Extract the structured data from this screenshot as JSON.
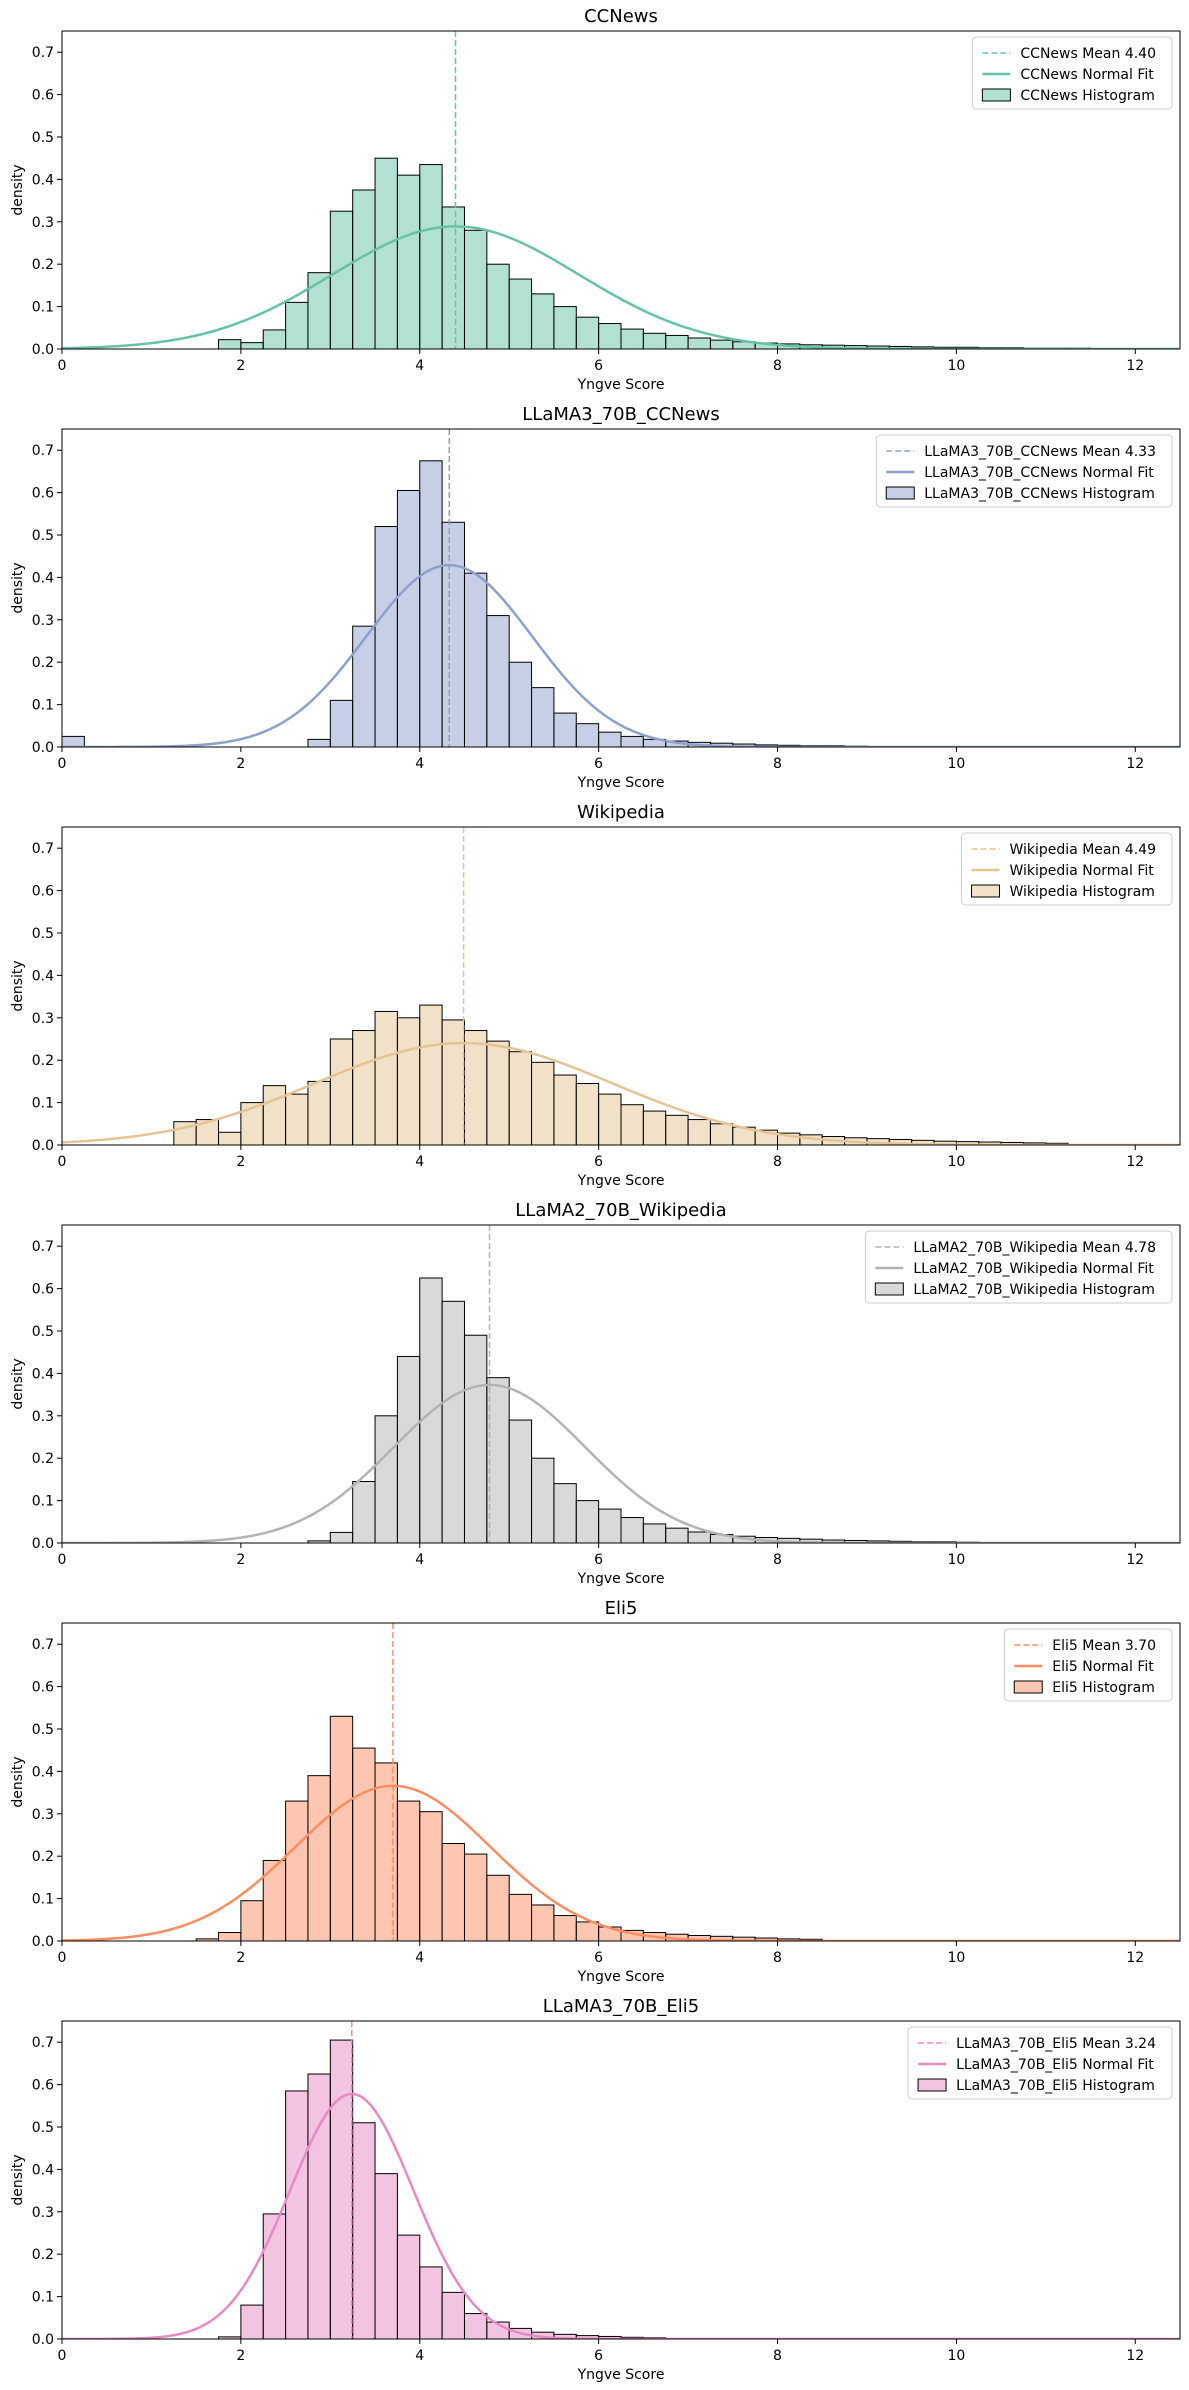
{
  "chart_data": [
    {
      "type": "histogram",
      "title": "CCNews",
      "xlabel": "Yngve Score",
      "ylabel": "density",
      "xlim": [
        0,
        12.5
      ],
      "ylim": [
        0,
        0.75
      ],
      "xticks": [
        "0",
        "2",
        "4",
        "6",
        "8",
        "10",
        "12"
      ],
      "yticks": [
        "0.0",
        "0.1",
        "0.2",
        "0.3",
        "0.4",
        "0.5",
        "0.6",
        "0.7"
      ],
      "color": "#66c2a5",
      "bin_start": 1.75,
      "bin_width": 0.25,
      "densities": [
        0.022,
        0.015,
        0.045,
        0.11,
        0.18,
        0.325,
        0.375,
        0.45,
        0.41,
        0.435,
        0.335,
        0.28,
        0.2,
        0.165,
        0.13,
        0.1,
        0.075,
        0.06,
        0.047,
        0.037,
        0.032,
        0.026,
        0.021,
        0.017,
        0.014,
        0.012,
        0.01,
        0.009,
        0.008,
        0.007,
        0.006,
        0.005,
        0.004,
        0.004,
        0.003,
        0.003,
        0.002,
        0.002,
        0.002,
        0.001,
        0.001
      ],
      "mean": 4.4,
      "std": 1.38,
      "legend": [
        "CCNews Mean 4.40",
        "CCNews Normal Fit",
        "CCNews Histogram"
      ],
      "legend_position": "upper right"
    },
    {
      "type": "histogram",
      "title": "LLaMA3_70B_CCNews",
      "xlabel": "Yngve Score",
      "ylabel": "density",
      "xlim": [
        0,
        12.5
      ],
      "ylim": [
        0,
        0.75
      ],
      "xticks": [
        "0",
        "2",
        "4",
        "6",
        "8",
        "10",
        "12"
      ],
      "yticks": [
        "0.0",
        "0.1",
        "0.2",
        "0.3",
        "0.4",
        "0.5",
        "0.6",
        "0.7"
      ],
      "color": "#8da0cb",
      "bin_start": 2.75,
      "bin_width": 0.25,
      "densities": [
        0.018,
        0.11,
        0.285,
        0.52,
        0.605,
        0.675,
        0.53,
        0.41,
        0.31,
        0.2,
        0.14,
        0.08,
        0.055,
        0.035,
        0.025,
        0.018,
        0.014,
        0.011,
        0.009,
        0.007,
        0.005,
        0.004,
        0.003,
        0.003,
        0.002,
        0.001
      ],
      "outlier_bins": [
        {
          "x": 0.0,
          "density": 0.025
        }
      ],
      "mean": 4.33,
      "std": 0.93,
      "legend": [
        "LLaMA3_70B_CCNews Mean 4.33",
        "LLaMA3_70B_CCNews Normal Fit",
        "LLaMA3_70B_CCNews Histogram"
      ],
      "legend_position": "upper right"
    },
    {
      "type": "histogram",
      "title": "Wikipedia",
      "xlabel": "Yngve Score",
      "ylabel": "density",
      "xlim": [
        0,
        12.5
      ],
      "ylim": [
        0,
        0.75
      ],
      "xticks": [
        "0",
        "2",
        "4",
        "6",
        "8",
        "10",
        "12"
      ],
      "yticks": [
        "0.0",
        "0.1",
        "0.2",
        "0.3",
        "0.4",
        "0.5",
        "0.6",
        "0.7"
      ],
      "color": "#e5c494",
      "bin_start": 1.25,
      "bin_width": 0.25,
      "densities": [
        0.055,
        0.06,
        0.03,
        0.1,
        0.14,
        0.12,
        0.15,
        0.25,
        0.27,
        0.315,
        0.3,
        0.33,
        0.295,
        0.27,
        0.245,
        0.22,
        0.195,
        0.165,
        0.145,
        0.12,
        0.095,
        0.08,
        0.07,
        0.06,
        0.05,
        0.042,
        0.035,
        0.028,
        0.024,
        0.02,
        0.017,
        0.015,
        0.013,
        0.011,
        0.009,
        0.008,
        0.007,
        0.006,
        0.005,
        0.004
      ],
      "mean": 4.49,
      "std": 1.66,
      "legend": [
        "Wikipedia Mean 4.49",
        "Wikipedia Normal Fit",
        "Wikipedia Histogram"
      ],
      "legend_position": "upper right"
    },
    {
      "type": "histogram",
      "title": "LLaMA2_70B_Wikipedia",
      "xlabel": "Yngve Score",
      "ylabel": "density",
      "xlim": [
        0,
        12.5
      ],
      "ylim": [
        0,
        0.75
      ],
      "xticks": [
        "0",
        "2",
        "4",
        "6",
        "8",
        "10",
        "12"
      ],
      "yticks": [
        "0.0",
        "0.1",
        "0.2",
        "0.3",
        "0.4",
        "0.5",
        "0.6",
        "0.7"
      ],
      "color": "#b3b3b3",
      "bin_start": 2.75,
      "bin_width": 0.25,
      "densities": [
        0.005,
        0.025,
        0.145,
        0.3,
        0.44,
        0.625,
        0.57,
        0.49,
        0.39,
        0.29,
        0.2,
        0.14,
        0.1,
        0.08,
        0.06,
        0.045,
        0.035,
        0.026,
        0.02,
        0.016,
        0.013,
        0.011,
        0.009,
        0.007,
        0.006,
        0.005,
        0.004,
        0.003,
        0.003,
        0.002
      ],
      "mean": 4.78,
      "std": 1.07,
      "legend": [
        "LLaMA2_70B_Wikipedia Mean 4.78",
        "LLaMA2_70B_Wikipedia Normal Fit",
        "LLaMA2_70B_Wikipedia Histogram"
      ],
      "legend_position": "upper right"
    },
    {
      "type": "histogram",
      "title": "Eli5",
      "xlabel": "Yngve Score",
      "ylabel": "density",
      "xlim": [
        0,
        12.5
      ],
      "ylim": [
        0,
        0.75
      ],
      "xticks": [
        "0",
        "2",
        "4",
        "6",
        "8",
        "10",
        "12"
      ],
      "yticks": [
        "0.0",
        "0.1",
        "0.2",
        "0.3",
        "0.4",
        "0.5",
        "0.6",
        "0.7"
      ],
      "color": "#fc8d62",
      "bin_start": 1.5,
      "bin_width": 0.25,
      "densities": [
        0.005,
        0.02,
        0.095,
        0.19,
        0.33,
        0.39,
        0.53,
        0.455,
        0.42,
        0.33,
        0.305,
        0.23,
        0.205,
        0.155,
        0.11,
        0.085,
        0.06,
        0.045,
        0.033,
        0.025,
        0.02,
        0.016,
        0.013,
        0.011,
        0.009,
        0.007,
        0.005,
        0.004
      ],
      "mean": 3.7,
      "std": 1.09,
      "legend": [
        "Eli5 Mean 3.70",
        "Eli5 Normal Fit",
        "Eli5 Histogram"
      ],
      "legend_position": "upper right"
    },
    {
      "type": "histogram",
      "title": "LLaMA3_70B_Eli5",
      "xlabel": "Yngve Score",
      "ylabel": "density",
      "xlim": [
        0,
        12.5
      ],
      "ylim": [
        0,
        0.75
      ],
      "xticks": [
        "0",
        "2",
        "4",
        "6",
        "8",
        "10",
        "12"
      ],
      "yticks": [
        "0.0",
        "0.1",
        "0.2",
        "0.3",
        "0.4",
        "0.5",
        "0.6",
        "0.7"
      ],
      "color": "#e78ac3",
      "bin_start": 1.75,
      "bin_width": 0.25,
      "densities": [
        0.005,
        0.08,
        0.295,
        0.585,
        0.625,
        0.705,
        0.51,
        0.39,
        0.245,
        0.17,
        0.11,
        0.06,
        0.04,
        0.025,
        0.016,
        0.011,
        0.008,
        0.006,
        0.004,
        0.003
      ],
      "mean": 3.24,
      "std": 0.69,
      "legend": [
        "LLaMA3_70B_Eli5 Mean 3.24",
        "LLaMA3_70B_Eli5 Normal Fit",
        "LLaMA3_70B_Eli5 Histogram"
      ],
      "legend_position": "upper right"
    }
  ]
}
